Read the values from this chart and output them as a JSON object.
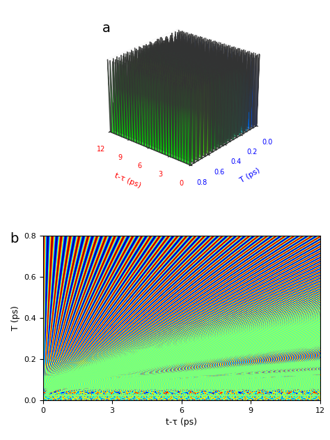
{
  "title_a": "a",
  "title_b": "b",
  "xlabel": "t-τ (ps)",
  "ylabel_a": "T (ps)",
  "ylabel_b": "T (ps)",
  "x_min": 0,
  "x_max": 12,
  "T_min": 0.0,
  "T_max": 0.8,
  "x_ticks": [
    0,
    3,
    6,
    9,
    12
  ],
  "T_ticks": [
    0.0,
    0.2,
    0.4,
    0.6,
    0.8
  ],
  "osc_freq": 6.5,
  "axis_label_color_red": "#FF0000",
  "axis_label_color_blue": "#0000FF",
  "background_color": "#FFFFFF",
  "nx": 600,
  "nT": 400,
  "n3d_slices": 20
}
